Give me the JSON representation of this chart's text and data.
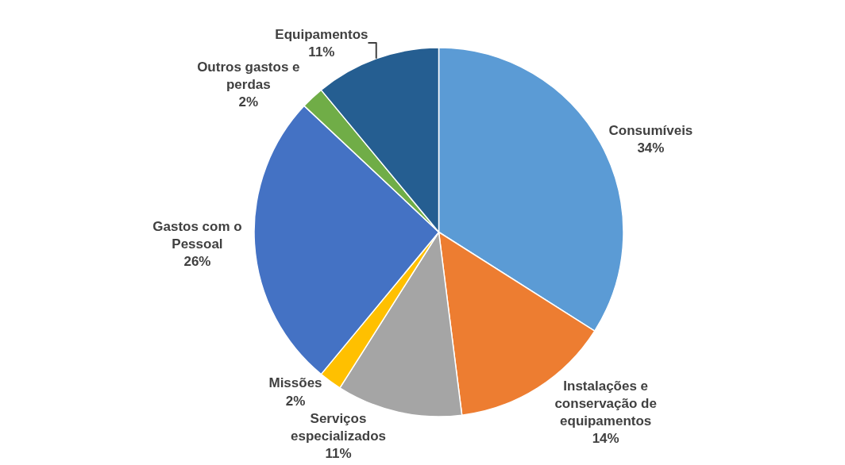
{
  "chart_data": {
    "type": "pie",
    "categories": [
      "Consumíveis",
      "Instalações e conservação de equipamentos",
      "Serviços especializados",
      "Missões",
      "Gastos com o Pessoal",
      "Outros gastos e perdas",
      "Equipamentos"
    ],
    "values": [
      34,
      14,
      11,
      2,
      26,
      2,
      11
    ],
    "value_labels": [
      "34%",
      "14%",
      "11%",
      "2%",
      "26%",
      "2%",
      "11%"
    ],
    "colors": [
      "#5b9bd5",
      "#ed7d31",
      "#a5a5a5",
      "#ffc000",
      "#4472c4",
      "#70ad47",
      "#255e91"
    ],
    "legend": false
  }
}
